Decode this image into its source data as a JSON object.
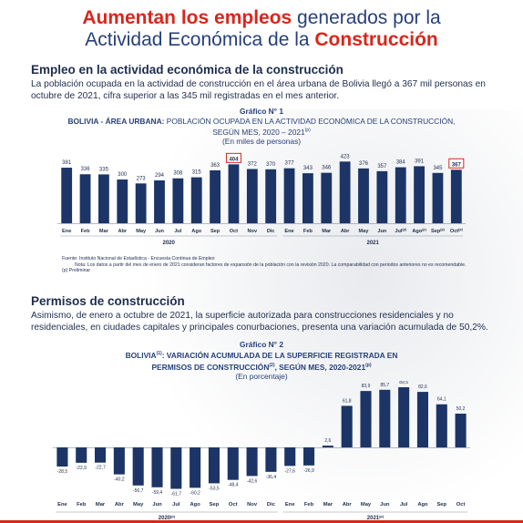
{
  "header": {
    "line1_a": "Aumentan los empleos",
    "line1_b": " generados por la",
    "line2_a": "Actividad Económica de la ",
    "line2_b": "Construcción"
  },
  "section1": {
    "heading": "Empleo en la actividad económica de la construcción",
    "paragraph": "La población ocupada en la actividad de construcción en el área urbana de Bolivia llegó a 367 mil personas en octubre de 2021, cifra superior a las 345 mil registradas en el mes anterior."
  },
  "section2": {
    "heading": "Permisos de construcción",
    "paragraph": "Asimismo, de enero a octubre de 2021, la superficie autorizada para construcciones residenciales y no residenciales, en ciudades capitales y principales conurbaciones, presenta una variación acumulada de 50,2%."
  },
  "chart1_head": {
    "label": "Gráfico N° 1",
    "title_bold": "BOLIVIA - ÁREA URBANA:",
    "title_rest": " POBLACIÓN OCUPADA EN LA ACTIVIDAD ECONÓMICA DE LA CONSTRUCCIÓN,",
    "title_line2": "SEGÚN MES, 2020 – 2021",
    "title_line2_sup": "(p)",
    "unit": "(En miles de personas)"
  },
  "chart1_notes": {
    "fuente": "Fuente: Instituto Nacional de Estadística - Encuesta Continua de Empleo",
    "nota": "Nota: Los datos a partir del mes de enero de 2021 consideran factores de expansión de la población con la revisión 2020. La comparabilidad con periodos anteriores no es recomendable.",
    "preliminar": "(p) Preliminar"
  },
  "chart2_head": {
    "label": "Gráfico N° 2",
    "line1_a": "BOLIVIA",
    "line1_sup": "(1)",
    "line1_b": ": VARIACIÓN ACUMULADA DE LA SUPERFICIE REGISTRADA EN",
    "line2_a": "PERMISOS DE CONSTRUCCIÓN",
    "line2_sup": "(2)",
    "line2_b": ", SEGÚN MES, 2020-2021",
    "line2_sup2": "(p)",
    "unit": "(En porcentaje)"
  },
  "chart_data": [
    {
      "type": "bar",
      "title": "BOLIVIA - ÁREA URBANA: POBLACIÓN OCUPADA EN LA ACTIVIDAD ECONÓMICA DE LA CONSTRUCCIÓN, SEGÚN MES, 2020 – 2021(p)",
      "ylabel": "(En miles de personas)",
      "categories": [
        "Ene",
        "Feb",
        "Mar",
        "Abr",
        "May",
        "Jun",
        "Jul",
        "Ago",
        "Sep",
        "Oct",
        "Nov",
        "Dic",
        "Ene",
        "Feb",
        "Mar",
        "Abr",
        "May",
        "Jun",
        "Jul(p)",
        "Ago(p)",
        "Sep(p)",
        "Oct(p)"
      ],
      "values": [
        381,
        336,
        335,
        300,
        273,
        294,
        308,
        315,
        363,
        404,
        372,
        370,
        377,
        343,
        346,
        423,
        376,
        357,
        384,
        391,
        345,
        367
      ],
      "value_labels": [
        "381",
        "336",
        "335",
        "300",
        "273",
        "294",
        "308",
        "315",
        "363",
        "404",
        "372",
        "370",
        "377",
        "343",
        "346",
        "423",
        "376",
        "357",
        "384",
        "391",
        "345",
        "367"
      ],
      "highlighted": [
        9,
        21
      ],
      "groups": [
        {
          "label": "2020",
          "start": 0,
          "end": 11
        },
        {
          "label": "2021",
          "start": 12,
          "end": 21
        }
      ],
      "ylim": [
        0,
        450
      ],
      "bar_color": "#1c3566",
      "highlight_color": "#d9261c"
    },
    {
      "type": "bar",
      "title": "BOLIVIA(1): VARIACIÓN ACUMULADA DE LA SUPERFICIE REGISTRADA EN PERMISOS DE CONSTRUCCIÓN(2), SEGÚN MES, 2020-2021(p)",
      "ylabel": "(En porcentaje)",
      "categories": [
        "Ene",
        "Feb",
        "Mar",
        "Abr",
        "May",
        "Jun",
        "Jul",
        "Ago",
        "Sep",
        "Oct",
        "Nov",
        "Dic",
        "Ene",
        "Feb",
        "Mar",
        "Abr",
        "May",
        "Jun",
        "Jul",
        "Ago",
        "Sep",
        "Oct"
      ],
      "values": [
        -28.5,
        -22.9,
        -22.7,
        -40.2,
        -56.7,
        -59.4,
        -61.7,
        -60.2,
        -53.5,
        -48.4,
        -42.6,
        -36.4,
        -27.6,
        -26.9,
        2.6,
        61.8,
        83.9,
        85.7,
        89.5,
        82.6,
        64.1,
        50.2
      ],
      "value_labels": [
        "-28,5",
        "-22,9",
        "-22,7",
        "-40,2",
        "-56,7",
        "-59,4",
        "-61,7",
        "-60,2",
        "-53,5",
        "-48,4",
        "-42,6",
        "-36,4",
        "-27,6",
        "-26,9",
        "2,6",
        "61,8",
        "83,9",
        "85,7",
        "89,5",
        "82,6",
        "64,1",
        "50,2"
      ],
      "groups": [
        {
          "label": "2020",
          "sup": "(p)",
          "start": 0,
          "end": 11
        },
        {
          "label": "2021",
          "sup": "(p)",
          "start": 12,
          "end": 21
        }
      ],
      "ylim": [
        -65,
        95
      ],
      "bar_color": "#1c3566"
    }
  ]
}
